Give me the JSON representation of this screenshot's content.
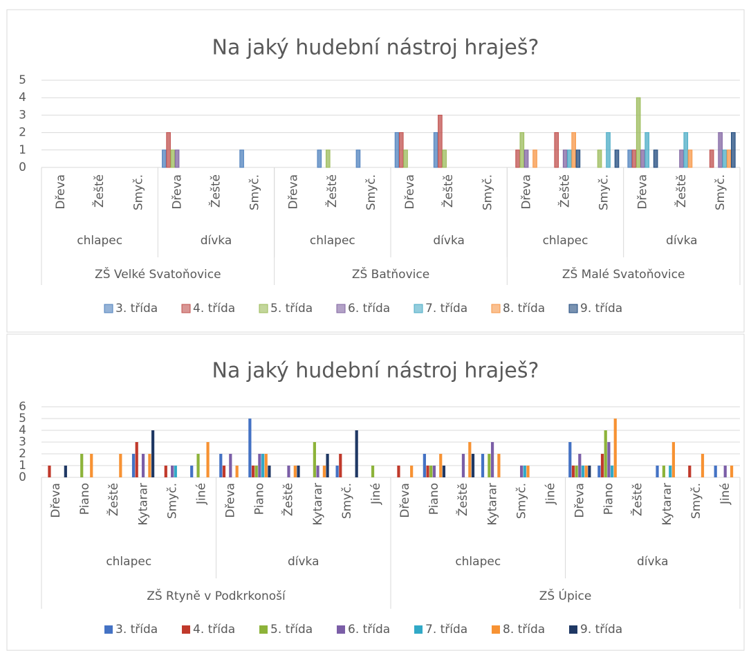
{
  "chart_data": [
    {
      "type": "bar",
      "title": "Na jaký hudební nástroj hraješ?",
      "groups": [
        {
          "name": "ZŠ Velké Svatoňovice",
          "groups": [
            {
              "name": "chlapec",
              "categories": [
                "Dřeva",
                "Žeště",
                "Smyč."
              ]
            },
            {
              "name": "dívka",
              "categories": [
                "Dřeva",
                "Žeště",
                "Smyč."
              ]
            }
          ]
        },
        {
          "name": "ZŠ Batňovice",
          "groups": [
            {
              "name": "chlapec",
              "categories": [
                "Dřeva",
                "Žeště",
                "Smyč."
              ]
            },
            {
              "name": "dívka",
              "categories": [
                "Dřeva",
                "Žeště",
                "Smyč."
              ]
            }
          ]
        },
        {
          "name": "ZŠ Malé Svatoňovice",
          "groups": [
            {
              "name": "chlapec",
              "categories": [
                "Dřeva",
                "Žeště",
                "Smyč."
              ]
            },
            {
              "name": "dívka",
              "categories": [
                "Dřeva",
                "Žeště",
                "Smyč."
              ]
            }
          ]
        }
      ],
      "series": [
        {
          "name": "3. třída",
          "color": "#4f81bd",
          "values": [
            0,
            0,
            0,
            1,
            0,
            1,
            0,
            1,
            1,
            2,
            2,
            0,
            0,
            0,
            0,
            1,
            0,
            0
          ]
        },
        {
          "name": "4. třída",
          "color": "#c0504d",
          "values": [
            0,
            0,
            0,
            2,
            0,
            0,
            0,
            0,
            0,
            2,
            3,
            0,
            1,
            2,
            0,
            1,
            0,
            1
          ]
        },
        {
          "name": "5. třída",
          "color": "#9bbb59",
          "values": [
            0,
            0,
            0,
            1,
            0,
            0,
            0,
            1,
            0,
            1,
            1,
            0,
            2,
            0,
            1,
            4,
            0,
            0
          ]
        },
        {
          "name": "6. třída",
          "color": "#8064a2",
          "values": [
            0,
            0,
            0,
            1,
            0,
            0,
            0,
            0,
            0,
            0,
            0,
            0,
            1,
            1,
            0,
            1,
            1,
            2
          ]
        },
        {
          "name": "7. třída",
          "color": "#4bacc6",
          "values": [
            0,
            0,
            0,
            0,
            0,
            0,
            0,
            0,
            0,
            0,
            0,
            0,
            0,
            1,
            2,
            2,
            2,
            1
          ]
        },
        {
          "name": "8. třída",
          "color": "#f79646",
          "values": [
            0,
            0,
            0,
            0,
            0,
            0,
            0,
            0,
            0,
            0,
            0,
            0,
            1,
            2,
            0,
            0,
            1,
            1
          ]
        },
        {
          "name": "9. třída",
          "color": "#1f497d",
          "values": [
            0,
            0,
            0,
            0,
            0,
            0,
            0,
            0,
            0,
            0,
            0,
            0,
            0,
            1,
            1,
            1,
            0,
            2
          ]
        }
      ],
      "ylim": [
        0,
        5
      ],
      "yticks": [
        0,
        1,
        2,
        3,
        4,
        5
      ],
      "grid": true,
      "legend": "bottom"
    },
    {
      "type": "bar",
      "title": "Na jaký hudební nástroj hraješ?",
      "groups": [
        {
          "name": "ZŠ Rtyně v Podkrkonoší",
          "groups": [
            {
              "name": "chlapec",
              "categories": [
                "Dřeva",
                "Piano",
                "Žeště",
                "Kytarar",
                "Smyč.",
                "Jiné"
              ]
            },
            {
              "name": "dívka",
              "categories": [
                "Dřeva",
                "Piano",
                "Žeště",
                "Kytarar",
                "Smyč.",
                "Jiné"
              ]
            }
          ]
        },
        {
          "name": "ZŠ Úpice",
          "groups": [
            {
              "name": "chlapec",
              "categories": [
                "Dřeva",
                "Piano",
                "Žeště",
                "Kytarar",
                "Smyč.",
                "Jiné"
              ]
            },
            {
              "name": "dívka",
              "categories": [
                "Dřeva",
                "Piano",
                "Žeště",
                "Kytarar",
                "Smyč.",
                "Jiné"
              ]
            }
          ]
        }
      ],
      "series": [
        {
          "name": "3. třída",
          "color": "#4472c4",
          "values": [
            0,
            0,
            0,
            2,
            0,
            1,
            2,
            5,
            0,
            0,
            1,
            0,
            0,
            2,
            0,
            2,
            0,
            0,
            3,
            1,
            0,
            1,
            0,
            1
          ]
        },
        {
          "name": "4. třída",
          "color": "#c0392b",
          "values": [
            1,
            0,
            0,
            3,
            1,
            0,
            1,
            1,
            0,
            0,
            2,
            0,
            1,
            1,
            0,
            0,
            0,
            0,
            1,
            2,
            0,
            0,
            1,
            0
          ]
        },
        {
          "name": "5. třída",
          "color": "#8db33a",
          "values": [
            0,
            2,
            0,
            0,
            0,
            2,
            0,
            1,
            0,
            3,
            0,
            1,
            0,
            1,
            0,
            2,
            0,
            0,
            1,
            4,
            0,
            1,
            0,
            0
          ]
        },
        {
          "name": "6. třída",
          "color": "#7b5ea7",
          "values": [
            0,
            0,
            0,
            2,
            1,
            0,
            2,
            2,
            1,
            1,
            0,
            0,
            0,
            1,
            2,
            3,
            1,
            0,
            2,
            3,
            0,
            0,
            0,
            1
          ]
        },
        {
          "name": "7. třída",
          "color": "#31a9c7",
          "values": [
            0,
            0,
            0,
            0,
            1,
            0,
            0,
            2,
            0,
            0,
            0,
            0,
            0,
            0,
            0,
            0,
            1,
            0,
            1,
            1,
            0,
            1,
            0,
            0
          ]
        },
        {
          "name": "8. třída",
          "color": "#f79233",
          "values": [
            0,
            2,
            2,
            2,
            0,
            3,
            1,
            2,
            1,
            1,
            0,
            0,
            1,
            2,
            3,
            2,
            1,
            0,
            1,
            5,
            0,
            3,
            2,
            1
          ]
        },
        {
          "name": "9. třída",
          "color": "#1f3864",
          "values": [
            1,
            0,
            0,
            4,
            0,
            0,
            0,
            1,
            1,
            2,
            4,
            0,
            0,
            1,
            2,
            0,
            0,
            0,
            1,
            0,
            0,
            0,
            0,
            0
          ]
        }
      ],
      "ylim": [
        0,
        6
      ],
      "yticks": [
        0,
        1,
        2,
        3,
        4,
        5,
        6
      ],
      "grid": true,
      "legend": "bottom"
    }
  ]
}
